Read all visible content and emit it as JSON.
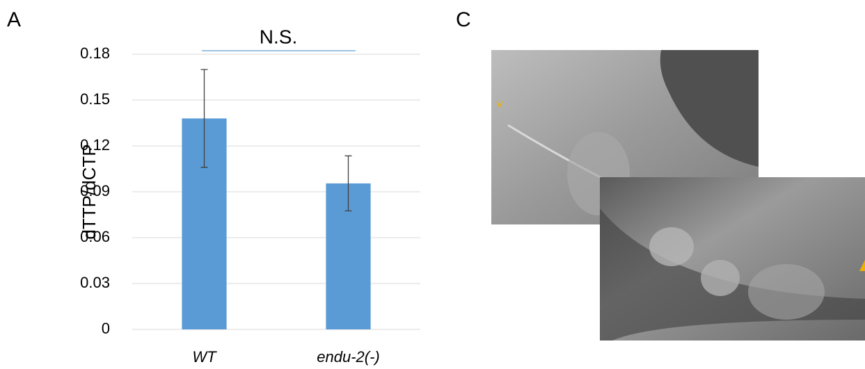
{
  "panels": {
    "a": "A",
    "c": "C"
  },
  "chart_data": {
    "type": "bar",
    "ylabel": "dTTP/dCTP",
    "annotation": "N.S.",
    "categories": [
      "WT",
      "endu-2(-)"
    ],
    "values": [
      0.138,
      0.0955
    ],
    "errors": [
      0.032,
      0.018
    ],
    "color": "#5b9bd5",
    "ylim": [
      0,
      0.18
    ],
    "yticks": [
      0,
      0.03,
      0.06,
      0.09,
      0.12,
      0.15,
      0.18
    ],
    "grid": true
  }
}
